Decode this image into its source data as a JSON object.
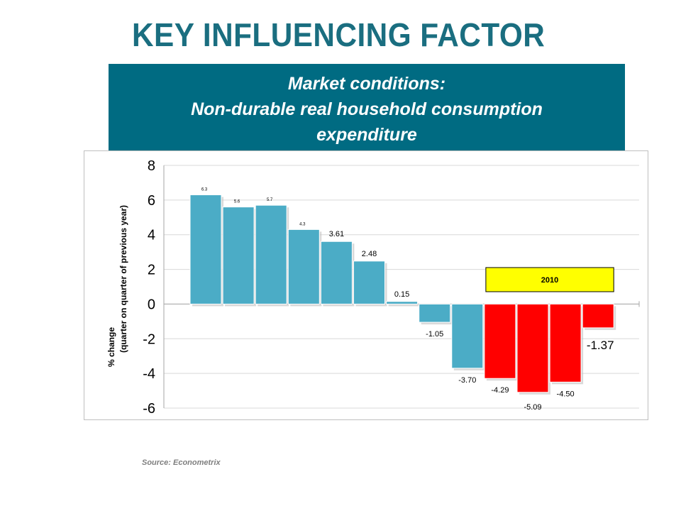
{
  "page": {
    "title": "KEY INFLUENCING FACTOR",
    "banner_line1": "Market conditions:",
    "banner_line2": "Non-durable real household consumption",
    "banner_line3": "expenditure",
    "source": "Source: Econometrix",
    "colors": {
      "title": "#1a6e80",
      "banner_bg": "#006b82"
    }
  },
  "chart_data": {
    "type": "bar",
    "title": "",
    "ylabel_line1": "% change",
    "ylabel_line2": "(quarter on quarter of previous year)",
    "ylim": [
      -6,
      8
    ],
    "yticks": [
      8,
      6,
      4,
      2,
      0,
      -2,
      -4,
      -6
    ],
    "grid": true,
    "values": [
      6.3,
      5.6,
      5.7,
      4.3,
      3.61,
      2.48,
      0.15,
      -1.05,
      -3.7,
      -4.29,
      -5.09,
      -4.5,
      -1.37
    ],
    "labels": [
      "6.3",
      "5.6",
      "5.7",
      "4.3",
      "3.61",
      "2.48",
      "0.15",
      "-1.05",
      "-3.70",
      "-4.29",
      "-5.09",
      "-4.50",
      "-1.37"
    ],
    "bar_colors": [
      "#4bacc6",
      "#4bacc6",
      "#4bacc6",
      "#4bacc6",
      "#4bacc6",
      "#4bacc6",
      "#4bacc6",
      "#4bacc6",
      "#4bacc6",
      "#ff0000",
      "#ff0000",
      "#ff0000",
      "#ff0000"
    ],
    "annotation": {
      "text": "2010",
      "fill": "#ffff00",
      "spans_bars": [
        9,
        12
      ]
    }
  }
}
